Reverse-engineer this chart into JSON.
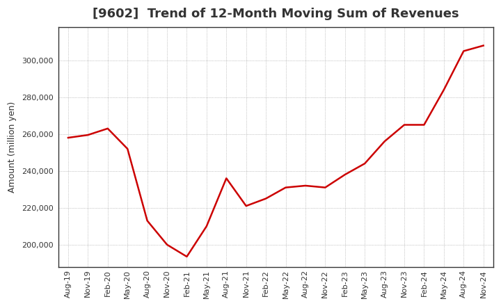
{
  "title": "[9602]  Trend of 12-Month Moving Sum of Revenues",
  "ylabel": "Amount (million yen)",
  "line_color": "#cc0000",
  "background_color": "#ffffff",
  "grid_color": "#999999",
  "ylim": [
    188000,
    318000
  ],
  "yticks": [
    200000,
    220000,
    240000,
    260000,
    280000,
    300000
  ],
  "x_labels": [
    "Aug-19",
    "Nov-19",
    "Feb-20",
    "May-20",
    "Aug-20",
    "Nov-20",
    "Feb-21",
    "May-21",
    "Aug-21",
    "Nov-21",
    "Feb-22",
    "May-22",
    "Aug-22",
    "Nov-22",
    "Feb-23",
    "May-23",
    "Aug-23",
    "Nov-23",
    "Feb-24",
    "May-24",
    "Aug-24",
    "Nov-24"
  ],
  "values": [
    258000,
    259500,
    263000,
    252000,
    213000,
    200000,
    193500,
    210000,
    236000,
    221000,
    225000,
    231000,
    232000,
    231000,
    238000,
    244000,
    256000,
    265000,
    265000,
    284000,
    305000,
    308000
  ],
  "title_fontsize": 13,
  "ylabel_fontsize": 9,
  "tick_fontsize": 8,
  "linewidth": 1.8
}
